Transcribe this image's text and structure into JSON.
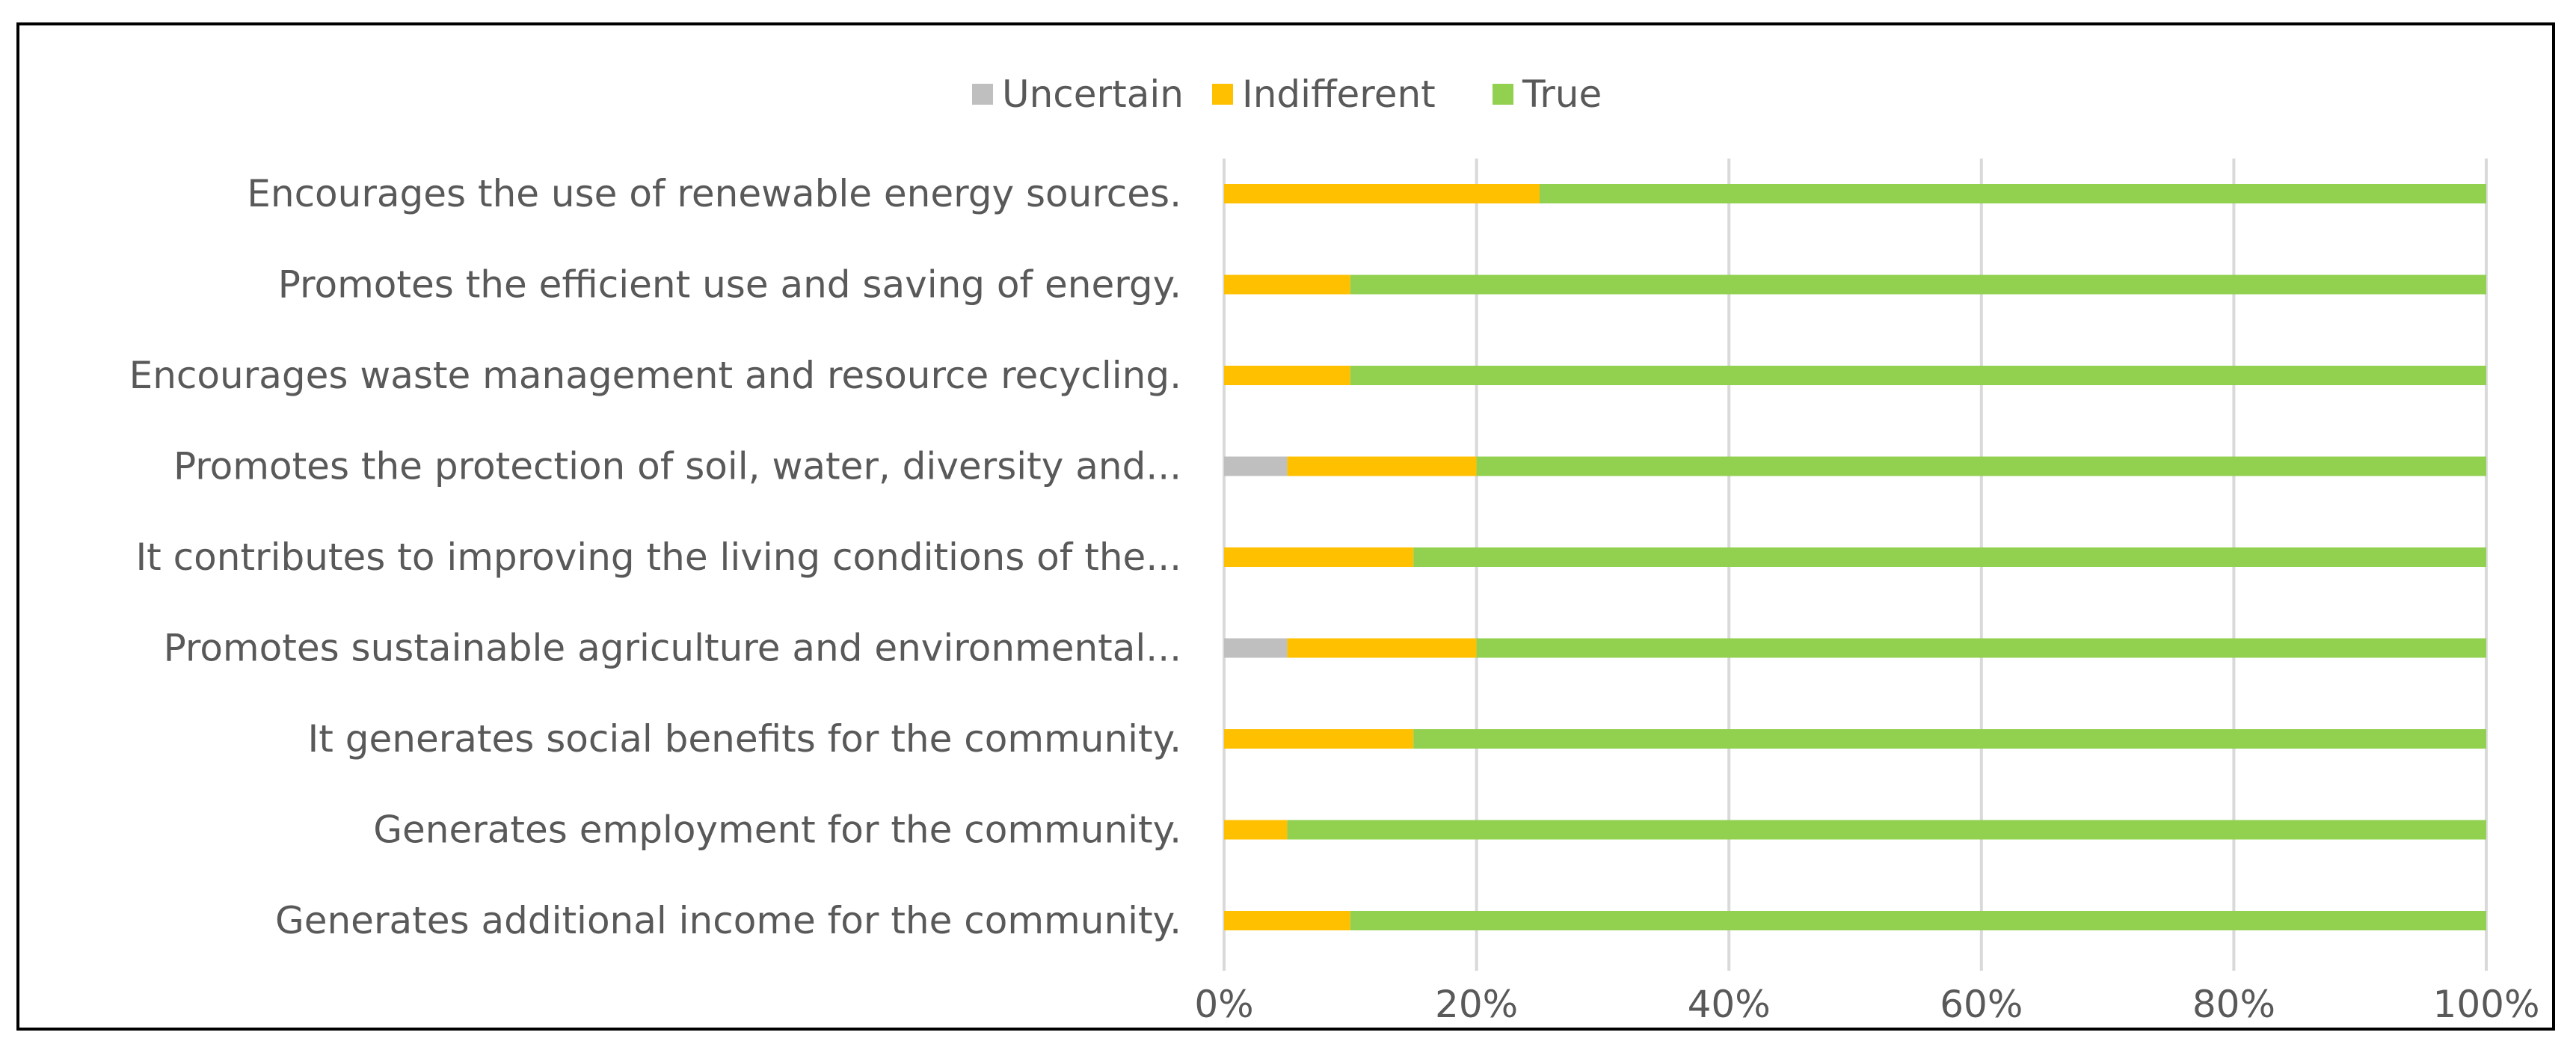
{
  "chart_data": {
    "type": "bar",
    "orientation": "horizontal",
    "stacked": "percent",
    "categories": [
      "Encourages the use of renewable energy sources.",
      "Promotes the efficient use and saving of energy.",
      "Encourages waste management and resource recycling.",
      "Promotes the protection of soil, water, diversity and...",
      "It contributes to improving the living conditions of the...",
      "Promotes sustainable agriculture and environmental...",
      "It generates social benefits for the community.",
      "Generates employment for the community.",
      "Generates additional income for the community."
    ],
    "series": [
      {
        "name": "Uncertain",
        "color": "#bfbfbf",
        "values": [
          0,
          0,
          0,
          5,
          0,
          5,
          0,
          0,
          0
        ]
      },
      {
        "name": "Indifferent",
        "color": "#ffc000",
        "values": [
          25,
          10,
          10,
          15,
          15,
          15,
          15,
          5,
          10
        ]
      },
      {
        "name": "True",
        "color": "#92d050",
        "values": [
          75,
          90,
          90,
          80,
          85,
          80,
          85,
          95,
          90
        ]
      }
    ],
    "x_ticks": [
      "0%",
      "20%",
      "40%",
      "60%",
      "80%",
      "100%"
    ],
    "xlim": [
      0,
      100
    ],
    "unit": "%",
    "grid": true,
    "gridline_color": "#d9d9d9",
    "legend_position": "top"
  }
}
